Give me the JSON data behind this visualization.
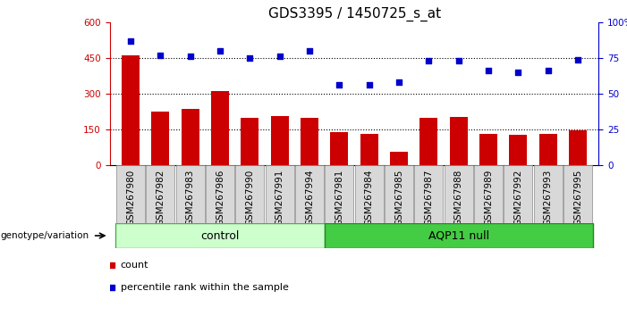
{
  "title": "GDS3395 / 1450725_s_at",
  "categories": [
    "GSM267980",
    "GSM267982",
    "GSM267983",
    "GSM267986",
    "GSM267990",
    "GSM267991",
    "GSM267994",
    "GSM267981",
    "GSM267984",
    "GSM267985",
    "GSM267987",
    "GSM267988",
    "GSM267989",
    "GSM267992",
    "GSM267993",
    "GSM267995"
  ],
  "counts": [
    460,
    225,
    238,
    310,
    200,
    205,
    200,
    140,
    132,
    55,
    198,
    202,
    130,
    128,
    133,
    148
  ],
  "percentile_ranks": [
    87,
    77,
    76,
    80,
    75,
    76,
    80,
    56,
    56,
    58,
    73,
    73,
    66,
    65,
    66,
    74
  ],
  "n_control": 7,
  "n_aqp11": 9,
  "bar_color": "#cc0000",
  "scatter_color": "#0000cc",
  "control_bg": "#ccffcc",
  "control_edge": "#55aa55",
  "aqp11_bg": "#44cc44",
  "aqp11_edge": "#228822",
  "yticks_left": [
    0,
    150,
    300,
    450,
    600
  ],
  "yticks_right": [
    0,
    25,
    50,
    75,
    100
  ],
  "ylim_left": [
    0,
    600
  ],
  "ylim_right": [
    0,
    100
  ],
  "title_fontsize": 11,
  "tick_fontsize": 7.5,
  "label_fontsize": 8,
  "bar_width": 0.6
}
